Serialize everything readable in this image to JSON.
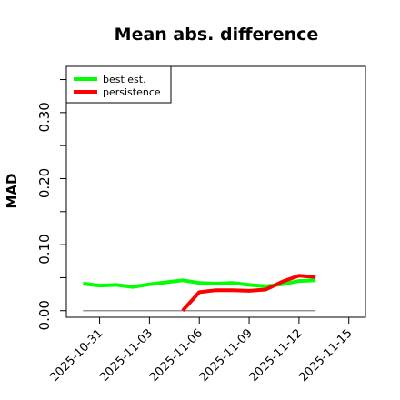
{
  "chart_data": {
    "type": "line",
    "title": "Mean abs. difference",
    "ylabel": "MAD",
    "xlabel": "",
    "ylim": [
      -0.01,
      0.37
    ],
    "yticks": [
      0.0,
      0.05,
      0.1,
      0.15,
      0.2,
      0.25,
      0.3,
      0.35
    ],
    "ytick_labels": [
      "0.00",
      "",
      "0.10",
      "",
      "0.20",
      "",
      "0.30",
      ""
    ],
    "x_dates": [
      "2025-10-30",
      "2025-10-31",
      "2025-11-01",
      "2025-11-02",
      "2025-11-03",
      "2025-11-04",
      "2025-11-05",
      "2025-11-06",
      "2025-11-07",
      "2025-11-08",
      "2025-11-09",
      "2025-11-10",
      "2025-11-11",
      "2025-11-12",
      "2025-11-13"
    ],
    "xlim": [
      "2025-10-29",
      "2025-11-16"
    ],
    "xticks": [
      "2025-10-31",
      "2025-11-03",
      "2025-11-06",
      "2025-11-09",
      "2025-11-12",
      "2025-11-15"
    ],
    "xtick_labels": [
      "2025-10-31",
      "2025-11-03",
      "2025-11-06",
      "2025-11-09",
      "2025-11-12",
      "2025-11-15"
    ],
    "grid": false,
    "legend_position": "top-left",
    "series": [
      {
        "name": "best est.",
        "color": "#00ff00",
        "values": [
          0.041,
          0.038,
          0.039,
          0.036,
          0.04,
          0.043,
          0.046,
          0.042,
          0.041,
          0.042,
          0.039,
          0.037,
          0.04,
          0.045,
          0.046
        ]
      },
      {
        "name": "persistence",
        "color": "#ff0000",
        "values": [
          null,
          null,
          null,
          null,
          null,
          null,
          0.0,
          0.028,
          0.031,
          0.031,
          0.03,
          0.032,
          0.044,
          0.053,
          0.051
        ]
      }
    ],
    "baseline": {
      "value": 0.0,
      "from": "2025-10-30",
      "to": "2025-11-13",
      "color": "#808080"
    }
  }
}
